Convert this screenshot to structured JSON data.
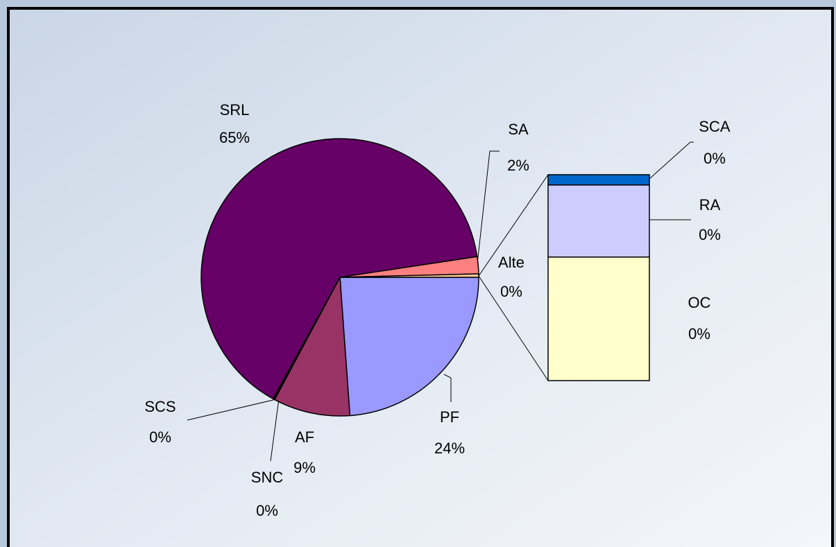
{
  "chart_data": {
    "type": "pie",
    "categories": [
      "PF",
      "AF",
      "SNC",
      "SCS",
      "SRL",
      "SA",
      "Alte"
    ],
    "values": [
      24,
      9,
      0.1,
      0.1,
      65,
      2,
      0.4
    ],
    "value_labels": [
      "24%",
      "9%",
      "0%",
      "0%",
      "65%",
      "2%",
      "0%"
    ],
    "colors": [
      "#9999ff",
      "#993366",
      "#cc6699",
      "#cc3366",
      "#660066",
      "#ff8080",
      "#ffcc99"
    ],
    "secondary": {
      "categories": [
        "SCA",
        "RA",
        "OC"
      ],
      "values": [
        0.02,
        0.14,
        0.24
      ],
      "value_labels": [
        "0%",
        "0%",
        "0%"
      ],
      "colors": [
        "#0066cc",
        "#ccccff",
        "#ffffcc"
      ]
    }
  }
}
